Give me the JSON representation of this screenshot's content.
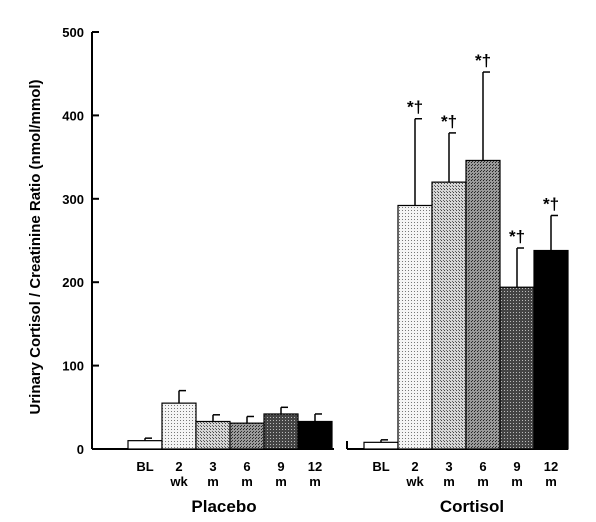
{
  "chart_data": {
    "type": "bar",
    "ylabel": "Urinary Cortisol / Creatinine Ratio (nmol/mmol)",
    "xlabel": "",
    "ylim": [
      0,
      500
    ],
    "yticks": [
      "0",
      "100",
      "200",
      "300",
      "400",
      "500"
    ],
    "grid": false,
    "groups": [
      {
        "name": "Placebo",
        "categories": [
          [
            "BL"
          ],
          [
            "2",
            "wk"
          ],
          [
            "3",
            "m"
          ],
          [
            "6",
            "m"
          ],
          [
            "9",
            "m"
          ],
          [
            "12",
            "m"
          ]
        ],
        "values": [
          10,
          55,
          33,
          31,
          42,
          33
        ],
        "errors": [
          3,
          15,
          8,
          8,
          8,
          9
        ],
        "annotations": [
          "",
          "",
          "",
          "",
          "",
          ""
        ]
      },
      {
        "name": "Cortisol",
        "categories": [
          [
            "BL"
          ],
          [
            "2",
            "wk"
          ],
          [
            "3",
            "m"
          ],
          [
            "6",
            "m"
          ],
          [
            "9",
            "m"
          ],
          [
            "12",
            "m"
          ]
        ],
        "values": [
          8,
          292,
          320,
          346,
          194,
          238
        ],
        "errors": [
          3,
          104,
          59,
          106,
          47,
          42
        ],
        "annotations": [
          "",
          "*†",
          "*†",
          "*†",
          "*†",
          "*†"
        ]
      }
    ],
    "bar_fills": [
      "#ffffff",
      "#e3e3e3",
      "#c6c6c6",
      "#8a8a8a",
      "#3c3c3c",
      "#000000"
    ]
  }
}
